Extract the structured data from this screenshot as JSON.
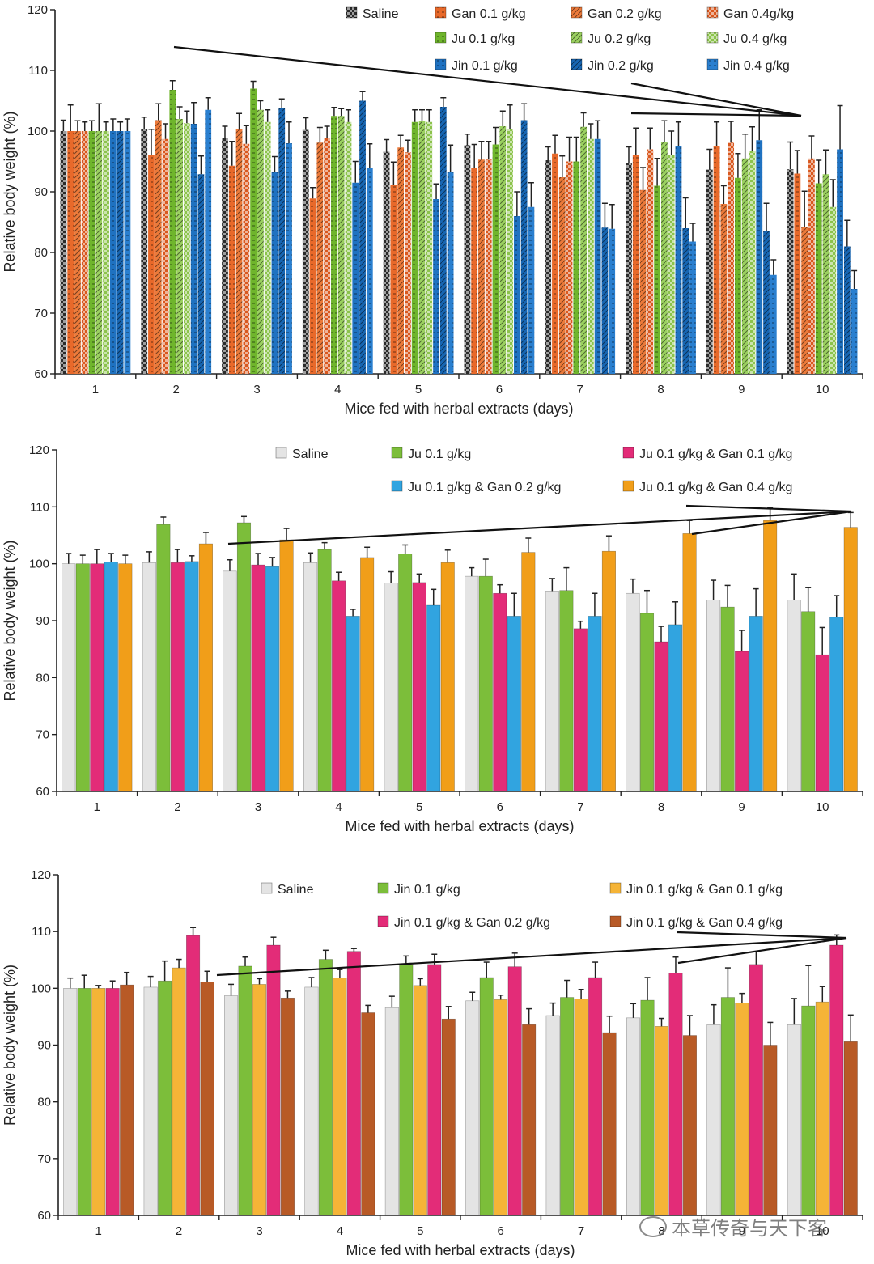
{
  "chart_data": [
    {
      "type": "bar",
      "categories": [
        "1",
        "2",
        "3",
        "4",
        "5",
        "6",
        "7",
        "8",
        "9",
        "10"
      ],
      "xlabel": "Mice fed with herbal extracts (days)",
      "ylabel": "Relative body weight (%)",
      "ylim": [
        60,
        120
      ],
      "yticks": [
        60,
        70,
        80,
        90,
        100,
        110,
        120
      ],
      "legend_position": "top-right",
      "series": [
        {
          "name": "Saline",
          "color": "#2b2b2b",
          "pattern": "checker",
          "values": [
            100,
            100.3,
            98.8,
            100.2,
            96.6,
            97.7,
            95.2,
            94.8,
            93.7,
            93.7
          ],
          "errors": [
            1.8,
            2.0,
            2.0,
            2.0,
            2.0,
            1.8,
            2.2,
            2.6,
            3.3,
            4.5
          ]
        },
        {
          "name": "Gan 0.1 g/kg",
          "color": "#e8692a",
          "pattern": "hdash",
          "values": [
            100,
            96.0,
            94.3,
            88.9,
            91.2,
            94.0,
            96.3,
            96.0,
            97.5,
            93.0
          ],
          "errors": [
            4.3,
            4.3,
            4.0,
            1.8,
            3.7,
            3.8,
            3.0,
            4.5,
            4.0,
            3.8
          ]
        },
        {
          "name": "Gan 0.2 g/kg",
          "color": "#ec7a3a",
          "pattern": "diag",
          "values": [
            100,
            101.8,
            100.3,
            98.1,
            97.3,
            95.3,
            92.4,
            90.3,
            88.0,
            84.2
          ],
          "errors": [
            1.7,
            2.7,
            2.6,
            2.5,
            2.0,
            3.0,
            3.5,
            3.7,
            3.0,
            5.9
          ]
        },
        {
          "name": "Gan 0.4g/kg",
          "color": "#d9581f",
          "pattern": "checker",
          "values": [
            100,
            98.7,
            97.9,
            98.8,
            96.5,
            95.3,
            95.0,
            97.0,
            98.1,
            95.5
          ],
          "errors": [
            1.5,
            2.5,
            3.0,
            2.0,
            2.0,
            3.0,
            4.0,
            3.5,
            3.5,
            3.7
          ]
        },
        {
          "name": "Ju 0.1 g/kg",
          "color": "#6fb52c",
          "pattern": "hdash",
          "values": [
            100,
            106.8,
            107.0,
            102.5,
            101.5,
            97.8,
            95.0,
            91.0,
            92.3,
            91.4
          ],
          "errors": [
            1.7,
            1.5,
            1.2,
            1.4,
            2.0,
            2.8,
            4.0,
            4.5,
            4.0,
            3.8
          ]
        },
        {
          "name": "Ju 0.2 g/kg",
          "color": "#9bd160",
          "pattern": "diag",
          "values": [
            100,
            102.0,
            103.5,
            102.5,
            101.7,
            100.8,
            100.7,
            98.2,
            95.5,
            92.9
          ],
          "errors": [
            4.5,
            2.0,
            1.5,
            1.2,
            1.8,
            2.5,
            2.3,
            3.5,
            4.0,
            4.0
          ]
        },
        {
          "name": "Ju 0.4 g/kg",
          "color": "#8cc34c",
          "pattern": "checker",
          "values": [
            100,
            101.3,
            101.5,
            101.5,
            101.5,
            100.3,
            98.7,
            96.0,
            96.7,
            87.5
          ],
          "errors": [
            1.5,
            2.0,
            2.0,
            2.0,
            2.0,
            4.0,
            2.5,
            4.0,
            4.0,
            4.5
          ]
        },
        {
          "name": "Jin 0.1 g/kg",
          "color": "#1f72c1",
          "pattern": "hdash",
          "values": [
            100,
            101.2,
            93.3,
            91.5,
            88.8,
            86.0,
            98.7,
            97.5,
            98.5,
            97.0
          ],
          "errors": [
            2.0,
            3.5,
            2.5,
            3.5,
            2.5,
            4.0,
            3.0,
            4.0,
            5.0,
            7.2
          ]
        },
        {
          "name": "Jin 0.2 g/kg",
          "color": "#1766b3",
          "pattern": "diag",
          "values": [
            100,
            92.9,
            103.8,
            105.0,
            104.0,
            101.8,
            84.1,
            84.0,
            83.6,
            81.0
          ],
          "errors": [
            1.5,
            3.0,
            1.5,
            1.5,
            1.5,
            2.7,
            4.0,
            5.0,
            4.5,
            4.3
          ]
        },
        {
          "name": "Jin 0.4 g/kg",
          "color": "#2a7fcf",
          "pattern": "hdash",
          "values": [
            100,
            103.5,
            98.0,
            93.9,
            93.2,
            87.5,
            83.9,
            81.8,
            76.3,
            74.0
          ],
          "errors": [
            2.0,
            2.0,
            3.5,
            4.0,
            4.5,
            4.0,
            4.0,
            3.0,
            2.5,
            3.0
          ]
        }
      ],
      "legend_order": [
        [
          0,
          1,
          2,
          3
        ],
        [
          null,
          4,
          5,
          6
        ],
        [
          null,
          7,
          8,
          9
        ]
      ]
    },
    {
      "type": "bar",
      "categories": [
        "1",
        "2",
        "3",
        "4",
        "5",
        "6",
        "7",
        "8",
        "9",
        "10"
      ],
      "xlabel": "Mice fed with herbal extracts (days)",
      "ylabel": "Relative body weight (%)",
      "ylim": [
        60,
        120
      ],
      "yticks": [
        60,
        70,
        80,
        90,
        100,
        110,
        120
      ],
      "legend_position": "top-right",
      "series": [
        {
          "name": "Saline",
          "color": "#e4e4e4",
          "pattern": "solid",
          "values": [
            100,
            100.2,
            98.7,
            100.2,
            96.6,
            97.8,
            95.2,
            94.8,
            93.6,
            93.6
          ],
          "errors": [
            1.8,
            1.9,
            2.0,
            1.7,
            2.0,
            1.5,
            2.2,
            2.5,
            3.5,
            4.6
          ]
        },
        {
          "name": "Ju 0.1 g/kg",
          "color": "#7cbe3a",
          "pattern": "solid",
          "values": [
            100,
            106.9,
            107.2,
            102.5,
            101.7,
            97.8,
            95.3,
            91.3,
            92.4,
            91.6
          ],
          "errors": [
            1.5,
            1.3,
            1.1,
            1.2,
            1.6,
            3.0,
            4.0,
            4.0,
            3.8,
            4.2
          ]
        },
        {
          "name": "Ju 0.1 g/kg & Gan 0.1 g/kg",
          "color": "#e32c78",
          "pattern": "solid",
          "values": [
            100,
            100.2,
            99.8,
            97.0,
            96.7,
            94.8,
            88.6,
            86.3,
            84.6,
            84.0
          ],
          "errors": [
            2.5,
            2.3,
            2.0,
            1.5,
            1.5,
            1.5,
            1.3,
            2.7,
            3.7,
            4.8
          ]
        },
        {
          "name": "Ju 0.1 g/kg & Gan 0.2 g/kg",
          "color": "#31a4e0",
          "pattern": "solid",
          "values": [
            100.3,
            100.4,
            99.5,
            90.8,
            92.7,
            90.8,
            90.8,
            89.3,
            90.8,
            90.6
          ],
          "errors": [
            1.5,
            1.0,
            1.6,
            1.2,
            2.8,
            4.0,
            4.0,
            4.0,
            4.8,
            3.8
          ]
        },
        {
          "name": "Ju 0.1 g/kg & Gan 0.4 g/kg",
          "color": "#f19e19",
          "pattern": "solid",
          "values": [
            100,
            103.5,
            104.2,
            101.1,
            100.2,
            102.0,
            102.2,
            105.3,
            107.6,
            106.4
          ],
          "errors": [
            1.5,
            2.0,
            2.0,
            1.8,
            2.2,
            2.5,
            2.7,
            2.3,
            2.3,
            2.6
          ]
        }
      ],
      "legend_order": [
        [
          0,
          1,
          2
        ],
        [
          null,
          3,
          4
        ]
      ]
    },
    {
      "type": "bar",
      "categories": [
        "1",
        "2",
        "3",
        "4",
        "5",
        "6",
        "7",
        "8",
        "9",
        "10"
      ],
      "xlabel": "Mice fed with herbal extracts (days)",
      "ylabel": "Relative body weight (%)",
      "ylim": [
        60,
        120
      ],
      "yticks": [
        60,
        70,
        80,
        90,
        100,
        110,
        120
      ],
      "legend_position": "top-right",
      "series": [
        {
          "name": "Saline",
          "color": "#e4e4e4",
          "pattern": "solid",
          "values": [
            100,
            100.2,
            98.7,
            100.2,
            96.6,
            97.8,
            95.2,
            94.8,
            93.6,
            93.6
          ],
          "errors": [
            1.8,
            1.9,
            2.0,
            1.7,
            2.0,
            1.5,
            2.2,
            2.5,
            3.5,
            4.6
          ]
        },
        {
          "name": "Jin 0.1 g/kg",
          "color": "#7cbe3a",
          "pattern": "solid",
          "values": [
            100,
            101.3,
            103.9,
            105.1,
            104.2,
            101.9,
            98.4,
            97.9,
            98.4,
            96.9
          ],
          "errors": [
            2.3,
            3.5,
            1.6,
            1.6,
            1.5,
            2.7,
            3.0,
            4.0,
            5.2,
            7.1
          ]
        },
        {
          "name": "Jin 0.1 g/kg & Gan 0.1 g/kg",
          "color": "#f5b437",
          "pattern": "solid",
          "values": [
            100,
            103.6,
            100.7,
            101.8,
            100.5,
            98.0,
            98.1,
            93.3,
            97.4,
            97.6
          ],
          "errors": [
            0.5,
            1.5,
            1.0,
            1.5,
            1.2,
            0.8,
            1.7,
            1.4,
            1.7,
            2.7
          ]
        },
        {
          "name": "Jin 0.1 g/kg & Gan 0.2 g/kg",
          "color": "#e32c78",
          "pattern": "solid",
          "values": [
            100,
            109.3,
            107.6,
            106.5,
            104.2,
            103.8,
            101.9,
            102.7,
            104.2,
            107.6
          ],
          "errors": [
            1.3,
            1.4,
            1.4,
            0.5,
            1.8,
            2.4,
            2.7,
            2.8,
            2.3,
            1.8
          ]
        },
        {
          "name": "Jin 0.1 g/kg & Gan 0.4 g/kg",
          "color": "#b85a26",
          "pattern": "solid",
          "values": [
            100.6,
            101.1,
            98.3,
            95.7,
            94.6,
            93.6,
            92.2,
            91.7,
            90.0,
            90.6
          ],
          "errors": [
            2.2,
            1.9,
            1.2,
            1.3,
            2.2,
            2.8,
            2.9,
            3.5,
            4.0,
            4.7
          ]
        }
      ],
      "legend_order": [
        [
          0,
          1,
          2
        ],
        [
          null,
          3,
          4
        ]
      ]
    }
  ],
  "watermark": {
    "text": "本草传奇与天下客",
    "icon": "wechat-icon"
  }
}
